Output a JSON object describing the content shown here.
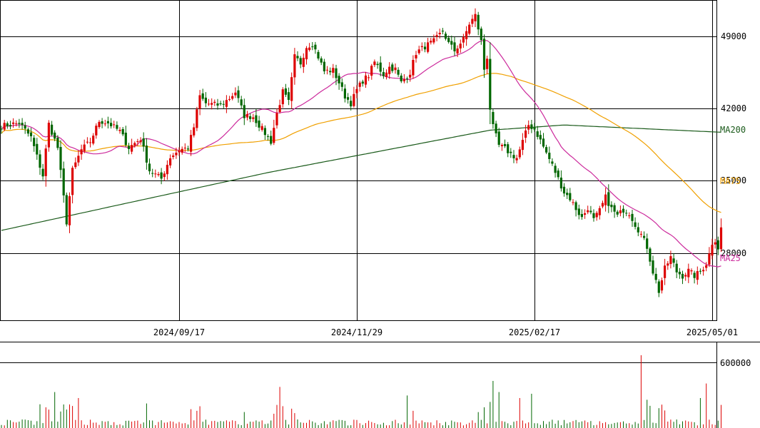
{
  "chart_data": {
    "type": "candlestick",
    "price_axis": {
      "ticks": [
        28000,
        35000,
        42000,
        49000
      ],
      "tick_labels": [
        "28000",
        "35000",
        "42000",
        "49000"
      ],
      "ylim": [
        21500,
        52500
      ]
    },
    "volume_axis": {
      "ticks": [
        600000
      ],
      "tick_labels": [
        "600000"
      ],
      "ylim": [
        0,
        780000
      ]
    },
    "date_labels": [
      "2024/09/17",
      "2024/11/29",
      "2025/02/17",
      "2025/05/01"
    ],
    "date_label_index": [
      60,
      120,
      180,
      240
    ],
    "candle_count": 240,
    "colors": {
      "up": "#dd0000",
      "down": "#006600",
      "ma25": "#cc2a9c",
      "ma75": "#f0a000",
      "ma200": "#1a5a1a",
      "grid": "#000000"
    },
    "ma_labels": [
      {
        "name": "MA200",
        "color": "#1a5a1a",
        "value": 40000
      },
      {
        "name": "MA75",
        "color": "#f0a000",
        "value": 35000
      },
      {
        "name": "MA25",
        "color": "#cc2a9c",
        "value": 27600
      }
    ],
    "close_anchors": [
      [
        0,
        40300
      ],
      [
        6,
        40600
      ],
      [
        10,
        39200
      ],
      [
        14,
        35500
      ],
      [
        16,
        40500
      ],
      [
        19,
        38200
      ],
      [
        22,
        31000
      ],
      [
        24,
        36000
      ],
      [
        27,
        38000
      ],
      [
        30,
        38800
      ],
      [
        33,
        40800
      ],
      [
        36,
        40600
      ],
      [
        40,
        39800
      ],
      [
        43,
        38200
      ],
      [
        47,
        39100
      ],
      [
        50,
        36000
      ],
      [
        54,
        35200
      ],
      [
        57,
        37300
      ],
      [
        60,
        38000
      ],
      [
        63,
        38200
      ],
      [
        65,
        40200
      ],
      [
        67,
        43200
      ],
      [
        69,
        42500
      ],
      [
        74,
        42300
      ],
      [
        77,
        43000
      ],
      [
        79,
        43600
      ],
      [
        82,
        41300
      ],
      [
        85,
        41200
      ],
      [
        88,
        40000
      ],
      [
        91,
        38800
      ],
      [
        93,
        41500
      ],
      [
        95,
        43600
      ],
      [
        97,
        42600
      ],
      [
        99,
        47000
      ],
      [
        101,
        46400
      ],
      [
        103,
        48000
      ],
      [
        105,
        48300
      ],
      [
        107,
        47000
      ],
      [
        109,
        45600
      ],
      [
        112,
        45700
      ],
      [
        114,
        44500
      ],
      [
        116,
        43200
      ],
      [
        118,
        42500
      ],
      [
        120,
        43800
      ],
      [
        122,
        44700
      ],
      [
        124,
        45200
      ],
      [
        126,
        46500
      ],
      [
        129,
        45300
      ],
      [
        131,
        46000
      ],
      [
        133,
        45800
      ],
      [
        135,
        44500
      ],
      [
        138,
        45500
      ],
      [
        140,
        47400
      ],
      [
        143,
        48000
      ],
      [
        146,
        48500
      ],
      [
        149,
        49500
      ],
      [
        151,
        48300
      ],
      [
        153,
        47600
      ],
      [
        156,
        48700
      ],
      [
        158,
        50200
      ],
      [
        160,
        51000
      ],
      [
        162,
        48500
      ],
      [
        163,
        45800
      ],
      [
        164,
        47000
      ],
      [
        165,
        42000
      ],
      [
        166,
        40200
      ],
      [
        168,
        38400
      ],
      [
        170,
        38100
      ],
      [
        172,
        37600
      ],
      [
        174,
        37200
      ],
      [
        176,
        38800
      ],
      [
        178,
        40400
      ],
      [
        180,
        40000
      ],
      [
        182,
        38900
      ],
      [
        184,
        37700
      ],
      [
        186,
        36500
      ],
      [
        188,
        35200
      ],
      [
        190,
        33900
      ],
      [
        192,
        33300
      ],
      [
        194,
        32300
      ],
      [
        196,
        31400
      ],
      [
        198,
        32400
      ],
      [
        200,
        31200
      ],
      [
        202,
        32100
      ],
      [
        204,
        33400
      ],
      [
        206,
        32300
      ],
      [
        208,
        31600
      ],
      [
        210,
        32200
      ],
      [
        212,
        31900
      ],
      [
        214,
        30800
      ],
      [
        216,
        29800
      ],
      [
        218,
        28600
      ],
      [
        220,
        26200
      ],
      [
        221,
        25300
      ],
      [
        222,
        24300
      ],
      [
        224,
        26500
      ],
      [
        226,
        27600
      ],
      [
        228,
        26200
      ],
      [
        230,
        25800
      ],
      [
        232,
        26300
      ],
      [
        234,
        25800
      ],
      [
        236,
        26200
      ],
      [
        238,
        27000
      ],
      [
        239,
        27900
      ],
      [
        240,
        29000
      ],
      [
        241,
        29300
      ],
      [
        242,
        28500
      ],
      [
        243,
        30400
      ]
    ],
    "volume_spikes": [
      [
        18,
        0.42
      ],
      [
        26,
        0.35
      ],
      [
        94,
        0.48
      ],
      [
        137,
        0.38
      ],
      [
        166,
        0.55
      ],
      [
        168,
        0.42
      ],
      [
        175,
        0.35
      ],
      [
        179,
        0.4
      ],
      [
        216,
        0.85
      ],
      [
        218,
        0.33
      ],
      [
        236,
        0.35
      ],
      [
        238,
        0.52
      ]
    ]
  }
}
